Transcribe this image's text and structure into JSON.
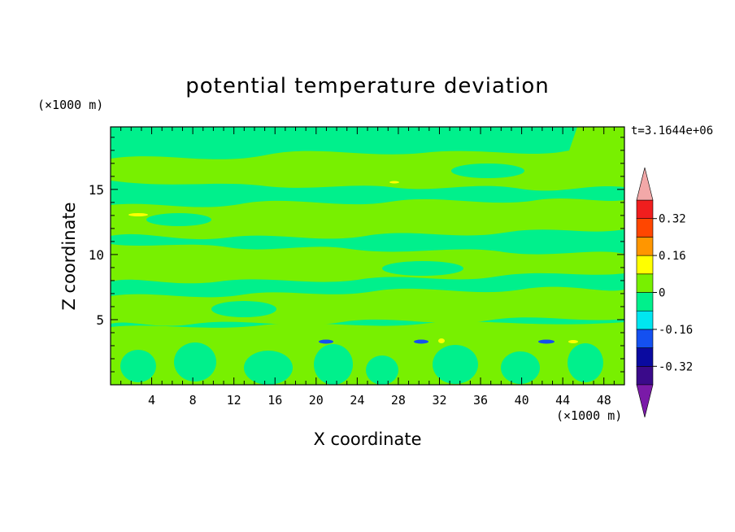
{
  "chart_data": {
    "type": "heatmap",
    "title": "potential temperature deviation",
    "xlabel": "X coordinate",
    "ylabel": "Z coordinate",
    "x_unit": "(×1000 m)",
    "z_unit": "(×1000 m)",
    "time_label": "t=3.1644e+06",
    "xlim": [
      0,
      50
    ],
    "ylim": [
      0,
      19.8
    ],
    "x_ticks": [
      4,
      8,
      12,
      16,
      20,
      24,
      28,
      32,
      36,
      40,
      44,
      48
    ],
    "y_ticks": [
      5,
      10,
      15
    ],
    "colorbar": {
      "levels": [
        -0.48,
        -0.4,
        -0.32,
        -0.24,
        -0.16,
        -0.08,
        0,
        0.08,
        0.16,
        0.24,
        0.32,
        0.4,
        0.48
      ],
      "labels": [
        "-0.32",
        "-0.16",
        "0",
        "0.16",
        "0.32"
      ],
      "label_values": [
        -0.32,
        -0.16,
        0,
        0.16,
        0.32
      ],
      "colors": [
        "#3a0a8a",
        "#0a0aa0",
        "#1450f0",
        "#00e6f0",
        "#00f08c",
        "#78f000",
        "#ffff00",
        "#ff9600",
        "#ff4600",
        "#f01e1e"
      ],
      "under_color": "#7a1aa8",
      "over_color": "#f2a8a8",
      "extend": "both"
    },
    "field": {
      "background_level": "-0.08 to 0",
      "dominant_level": "0 to 0.08",
      "bands": [
        {
          "z": [
            15.5,
            17.5
          ],
          "level": "0 to 0.08"
        },
        {
          "z": [
            12.5,
            14.5
          ],
          "level": "0 to 0.08"
        },
        {
          "z": [
            9.5,
            11.5
          ],
          "level": "0 to 0.08"
        },
        {
          "z": [
            6,
            8.5
          ],
          "level": "0 to 0.08"
        },
        {
          "z": [
            0,
            6
          ],
          "level": "0 to 0.08"
        }
      ],
      "features": [
        {
          "x": 20.5,
          "z": 3.4,
          "level": "-0.16 to -0.08"
        },
        {
          "x": 30.5,
          "z": 3.4,
          "level": "-0.16 to -0.08"
        },
        {
          "x": 42.5,
          "z": 3.4,
          "level": "-0.16 to -0.08"
        },
        {
          "x": 32.5,
          "z": 3.5,
          "level": "0.08 to 0.16"
        },
        {
          "x": 3.5,
          "z": 13.1,
          "level": "0.08 to 0.16"
        },
        {
          "x": 45,
          "z": 3.4,
          "level": "0.08 to 0.16"
        }
      ]
    }
  }
}
